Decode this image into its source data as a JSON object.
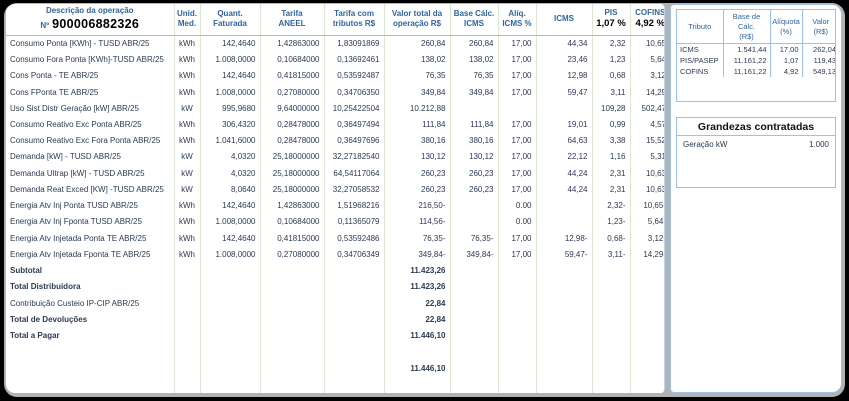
{
  "main_table": {
    "headers": {
      "desc": "Descrição da operação",
      "doc_prefix": "Nº",
      "doc_number": "900006882326",
      "unit1": "Unid.",
      "unit2": "Med.",
      "qty1": "Quant.",
      "qty2": "Faturada",
      "tariff1": "Tarifa",
      "tariff2": "ANEEL",
      "tariff_tax1": "Tarifa com",
      "tariff_tax2": "tributos R$",
      "total1": "Valor total da",
      "total2": "operação R$",
      "base1": "Base Cálc.",
      "base2": "ICMS",
      "aliq1": "Alíq.",
      "aliq2": "ICMS %",
      "icms": "ICMS",
      "pis": "PIS",
      "pis_rate": "1,07 %",
      "cofins": "COFINS",
      "cofins_rate": "4,92 %"
    },
    "rows": [
      [
        "Consumo Ponta [KWh] - TUSD ABR/25",
        "kWh",
        "142,4640",
        "1,42863000",
        "1,83091869",
        "260,84",
        "260,84",
        "17,00",
        "44,34",
        "2,32",
        "10,65"
      ],
      [
        "Consumo Fora Ponta [KWh]-TUSD ABR/25",
        "kWh",
        "1.008,0000",
        "0,10684000",
        "0,13692461",
        "138,02",
        "138,02",
        "17,00",
        "23,46",
        "1,23",
        "5,64"
      ],
      [
        "Cons Ponta - TE ABR/25",
        "kWh",
        "142,4640",
        "0,41815000",
        "0,53592487",
        "76,35",
        "76,35",
        "17,00",
        "12,98",
        "0,68",
        "3,12"
      ],
      [
        "Cons FPonta TE ABR/25",
        "kWh",
        "1.008,0000",
        "0,27080000",
        "0,34706350",
        "349,84",
        "349,84",
        "17,00",
        "59,47",
        "3,11",
        "14,29"
      ],
      [
        "Uso Sist Distr Geração [kW] ABR/25",
        "kW",
        "995,9680",
        "9,64000000",
        "10,25422504",
        "10.212,88",
        "",
        "",
        "",
        "109,28",
        "502,47"
      ],
      [
        "Consumo Reativo Exc Ponta ABR/25",
        "kWh",
        "306,4320",
        "0,28478000",
        "0,36497494",
        "111,84",
        "111,84",
        "17,00",
        "19,01",
        "0,99",
        "4,57"
      ],
      [
        "Consumo Reativo Exc Fora Ponta ABR/25",
        "kWh",
        "1.041,6000",
        "0,28478000",
        "0,36497696",
        "380,16",
        "380,16",
        "17,00",
        "64,63",
        "3,38",
        "15,52"
      ],
      [
        "Demanda [kW] - TUSD ABR/25",
        "kW",
        "4,0320",
        "25,18000000",
        "32,27182540",
        "130,12",
        "130,12",
        "17,00",
        "22,12",
        "1,16",
        "5,31"
      ],
      [
        "Demanda Ultrap [kW] - TUSD ABR/25",
        "kW",
        "4,0320",
        "25,18000000",
        "64,54117064",
        "260,23",
        "260,23",
        "17,00",
        "44,24",
        "2,31",
        "10,63"
      ],
      [
        "Demanda Reat Exced [KW] -TUSD ABR/25",
        "kW",
        "8,0640",
        "25,18000000",
        "32,27058532",
        "260,23",
        "260,23",
        "17,00",
        "44,24",
        "2,31",
        "10,63"
      ],
      [
        "Energia Atv Inj Ponta TUSD ABR/25",
        "kWh",
        "142,4640",
        "1,42863000",
        "1,51968216",
        "216,50-",
        "",
        "0.00",
        "",
        "2,32-",
        "10,65-"
      ],
      [
        "Energia Atv Inj Fponta TUSD ABR/25",
        "kWh",
        "1.008,0000",
        "0,10684000",
        "0,11365079",
        "114,56-",
        "",
        "0.00",
        "",
        "1,23-",
        "5,64-"
      ],
      [
        "Energia Atv Injetada Ponta TE ABR/25",
        "kWh",
        "142,4640",
        "0,41815000",
        "0,53592486",
        "76,35-",
        "76,35-",
        "17,00",
        "12,98-",
        "0,68-",
        "3,12-"
      ],
      [
        "Energia Atv Injetada Fponta TE ABR/25",
        "kWh",
        "1.008,0000",
        "0,27080000",
        "0,34706349",
        "349,84-",
        "349,84-",
        "17,00",
        "59,47-",
        "3,11-",
        "14,29-"
      ]
    ],
    "footer_rows": [
      {
        "label": "Subtotal",
        "value": "11.423,26",
        "bold": true
      },
      {
        "label": "Total Distribuidora",
        "value": "11.423,26",
        "bold": true
      },
      {
        "label": "Contribuição Custeio IP-CIP ABR/25",
        "value": "22,84",
        "bold": false
      },
      {
        "label": "Total de Devoluções",
        "value": "22,84",
        "bold": true
      },
      {
        "label": "Total a Pagar",
        "value": "11.446,10",
        "bold": true
      }
    ],
    "bottom_total": "11.446,10"
  },
  "tributos": {
    "headers": {
      "tributo": "Tributo",
      "base1": "Base de Cálc.",
      "base2": "(R$)",
      "aliq1": "Alíquota",
      "aliq2": "(%)",
      "valor1": "Valor",
      "valor2": "(R$)"
    },
    "rows": [
      [
        "ICMS",
        "1.541,44",
        "17,00",
        "262,04"
      ],
      [
        "PIS/PASEP",
        "11.161,22",
        "1,07",
        "119,43"
      ],
      [
        "COFINS",
        "11.161,22",
        "4,92",
        "549,13"
      ]
    ]
  },
  "grandezas": {
    "title": "Grandezas contratadas",
    "rows": [
      {
        "label": "Geração kW",
        "value": "1.000"
      }
    ]
  },
  "colors": {
    "header_blue": "#31659b",
    "grid_green": "#d8e8d2",
    "grid_blue": "#9cc2e5",
    "text_dark": "#2c3a52"
  }
}
